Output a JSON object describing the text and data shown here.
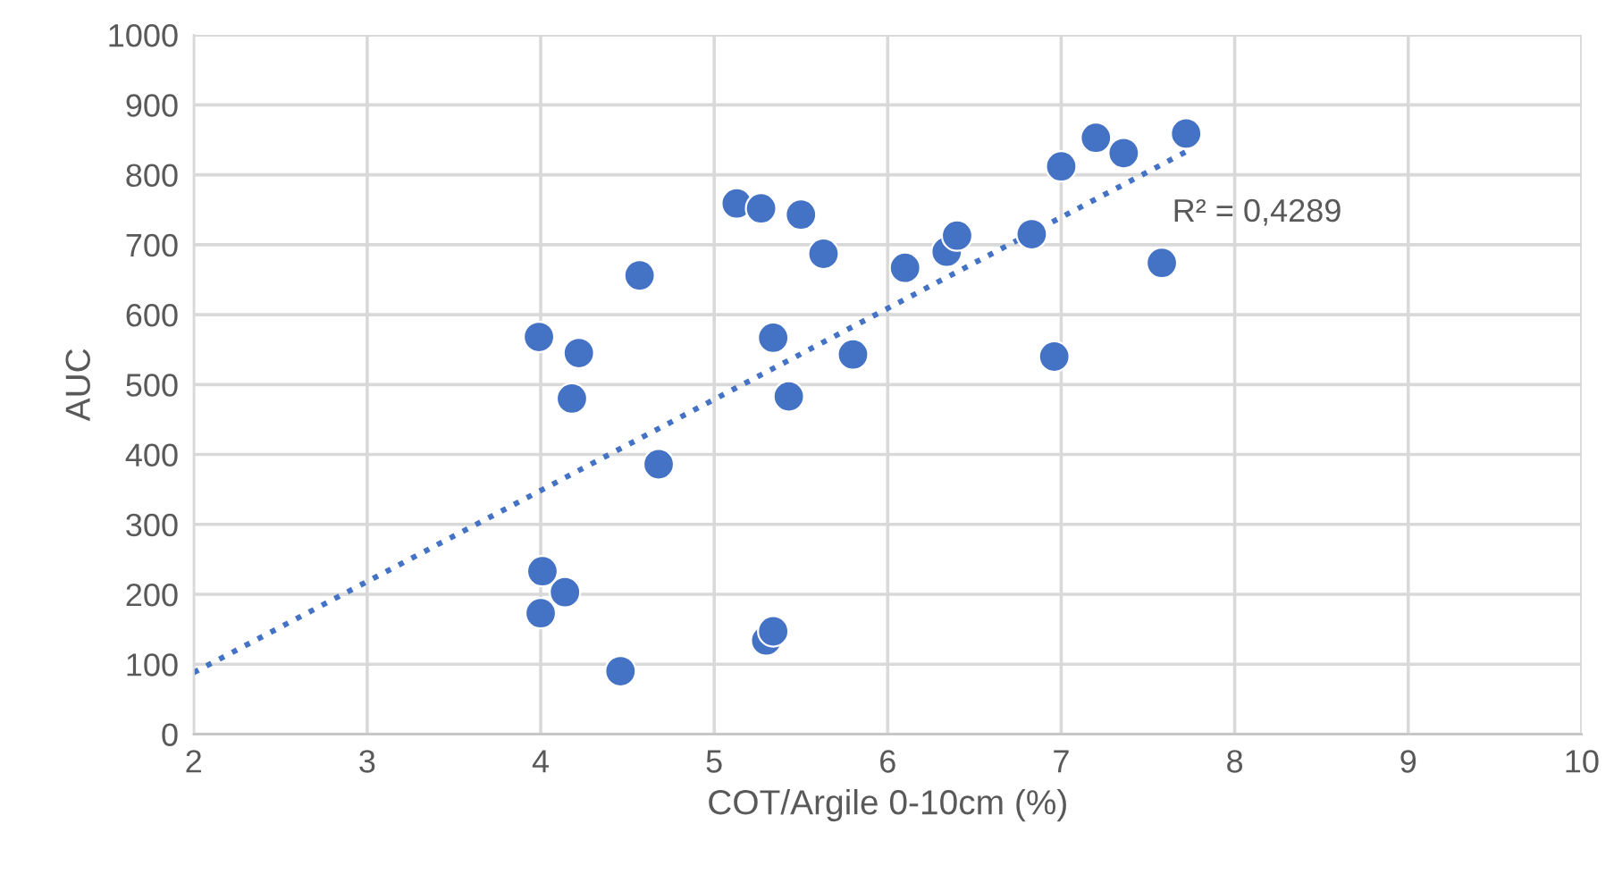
{
  "chart_data": {
    "type": "scatter",
    "xlabel": "COT/Argile 0-10cm (%)",
    "ylabel": "AUC",
    "series": [
      {
        "color": "#4472c4",
        "marker": "circle",
        "x": [
          3.99,
          4.01,
          4.0,
          4.14,
          4.18,
          4.22,
          4.57,
          4.68,
          4.46,
          5.3,
          5.34,
          5.34,
          5.43,
          5.8,
          5.63,
          6.1,
          6.34,
          6.4,
          6.83,
          7.0,
          6.96,
          7.2,
          7.36,
          7.72,
          7.58,
          5.13,
          5.27,
          5.5
        ],
        "values": [
          568,
          233,
          173,
          203,
          480,
          545,
          656,
          386,
          90,
          134,
          147,
          567,
          483,
          543,
          687,
          667,
          690,
          713,
          715,
          812,
          540,
          853,
          831,
          859,
          674,
          759,
          752,
          743
        ]
      },
      {
        "type": "line",
        "color": "#4472c4",
        "line_style": "dotted",
        "marker": "none",
        "x": [
          2,
          7.72
        ],
        "values": [
          88,
          833
        ]
      }
    ],
    "annotations": [
      "R² = 0,4289"
    ],
    "xlim": [
      2,
      10
    ],
    "xticks": [
      2,
      3,
      4,
      5,
      6,
      7,
      8,
      9,
      10
    ],
    "ylim": [
      0,
      1000
    ],
    "yticks": [
      0,
      100,
      200,
      300,
      400,
      500,
      600,
      700,
      800,
      900,
      1000
    ],
    "grid": true,
    "legend": false
  }
}
